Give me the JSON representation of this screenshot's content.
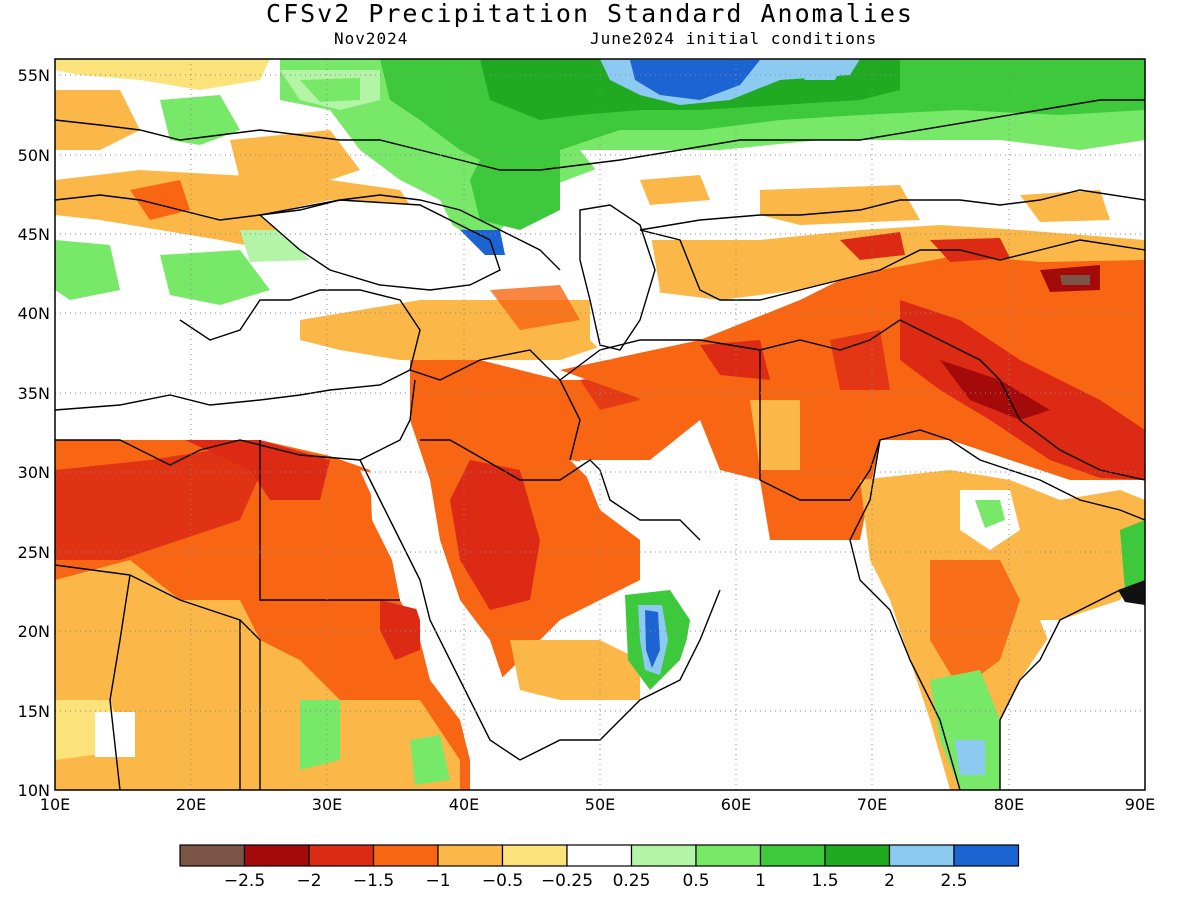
{
  "title": "CFSv2 Precipitation Standard Anomalies",
  "valid_month": "Nov2024",
  "init_conditions": "June2024 initial conditions",
  "lat_labels": [
    "55N",
    "50N",
    "45N",
    "40N",
    "35N",
    "30N",
    "25N",
    "20N",
    "15N",
    "10N"
  ],
  "lon_labels": [
    "10E",
    "20E",
    "30E",
    "40E",
    "50E",
    "60E",
    "70E",
    "80E",
    "90E"
  ],
  "extent": {
    "lon_min": 10,
    "lon_max": 90,
    "lat_min": 10,
    "lat_max": 56
  },
  "colorbar": {
    "colors": [
      "#7a5547",
      "#a50a0a",
      "#dc2a14",
      "#f86614",
      "#fbb848",
      "#fce27a",
      "#ffffff",
      "#b4f4a6",
      "#78e868",
      "#3ec83c",
      "#20aa22",
      "#8ccaf2",
      "#1c64d2"
    ],
    "tick_labels": [
      "−2.5",
      "−2",
      "−1.5",
      "−1",
      "−0.5",
      "−0.25",
      "0.25",
      "0.5",
      "1",
      "1.5",
      "2",
      "2.5"
    ]
  }
}
